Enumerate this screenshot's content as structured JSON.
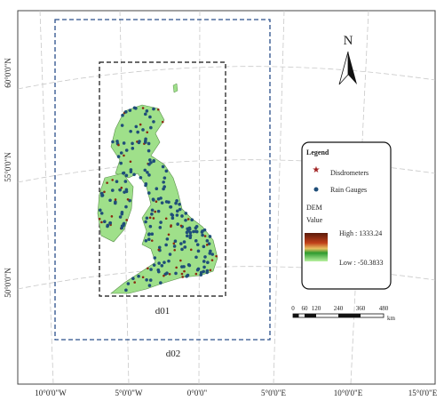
{
  "map": {
    "graticule": {
      "latitude_labels": [
        "60°0'0\"N",
        "55°0'0\"N",
        "50°0'0\"N"
      ],
      "longitude_labels": [
        "10°0'0\"W",
        "5°0'0\"W",
        "0°0'0\"",
        "5°0'0\"E",
        "10°0'0\"E",
        "15°0'0\"E"
      ]
    },
    "domains": {
      "inner": "d01",
      "outer": "d02"
    },
    "north_arrow": "N",
    "legend": {
      "title": "Legend",
      "items": [
        "Disdrometers",
        "Rain Gauges"
      ],
      "dem_title": "DEM",
      "dem_subtitle": "Value",
      "high": "High : 1333.24",
      "low": "Low : -50.3833"
    },
    "scale_bar": {
      "labels": [
        "0",
        "60",
        "120",
        "240",
        "360",
        "480"
      ],
      "unit": "km"
    }
  }
}
